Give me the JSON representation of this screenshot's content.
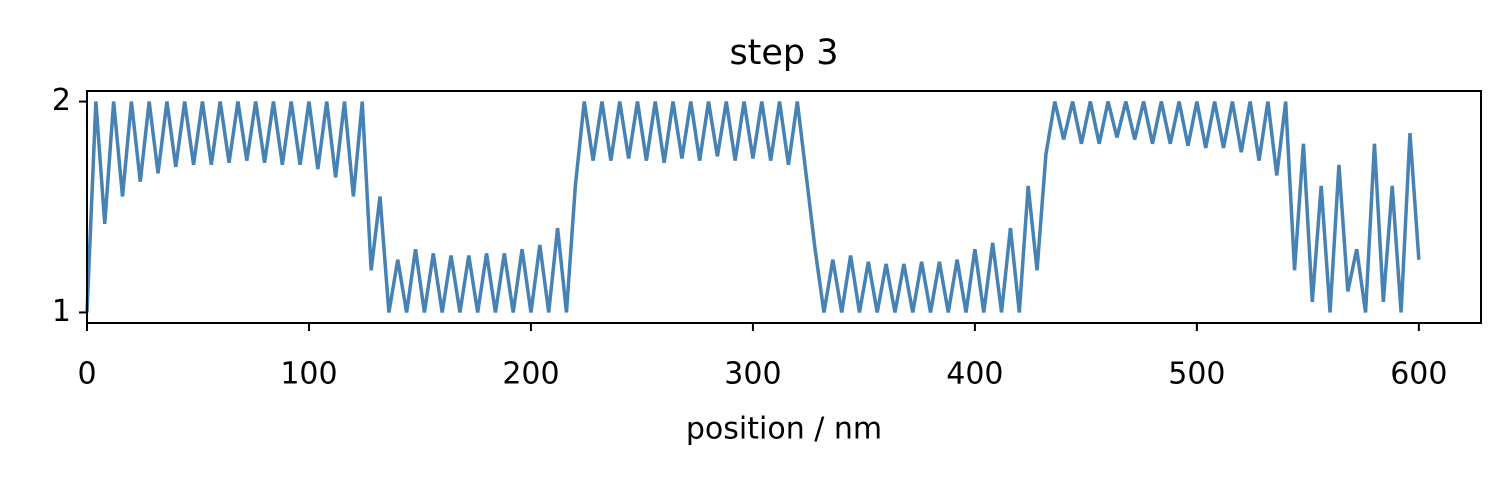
{
  "chart_data": {
    "type": "line",
    "title": "step 3",
    "xlabel": "position / nm",
    "x": [
      0,
      4,
      8,
      12,
      16,
      20,
      24,
      28,
      32,
      36,
      40,
      44,
      48,
      52,
      56,
      60,
      64,
      68,
      72,
      76,
      80,
      84,
      88,
      92,
      96,
      100,
      104,
      108,
      112,
      116,
      120,
      124,
      128,
      132,
      136,
      140,
      144,
      148,
      152,
      156,
      160,
      164,
      168,
      172,
      176,
      180,
      184,
      188,
      192,
      196,
      200,
      204,
      208,
      212,
      216,
      220,
      224,
      228,
      232,
      236,
      240,
      244,
      248,
      252,
      256,
      260,
      264,
      268,
      272,
      276,
      280,
      284,
      288,
      292,
      296,
      300,
      304,
      308,
      312,
      316,
      320,
      324,
      328,
      332,
      336,
      340,
      344,
      348,
      352,
      356,
      360,
      364,
      368,
      372,
      376,
      380,
      384,
      388,
      392,
      396,
      400,
      404,
      408,
      412,
      416,
      420,
      424,
      428,
      432,
      436,
      440,
      444,
      448,
      452,
      456,
      460,
      464,
      468,
      472,
      476,
      480,
      484,
      488,
      492,
      496,
      500,
      504,
      508,
      512,
      516,
      520,
      524,
      528,
      532,
      536,
      540,
      544,
      548,
      552,
      556,
      560,
      564,
      568,
      572,
      576,
      580,
      584,
      588,
      592,
      596,
      600
    ],
    "series": [
      {
        "color": "#4682b4",
        "values": [
          1.0,
          2,
          1.42,
          2,
          1.55,
          2,
          1.62,
          2,
          1.66,
          2,
          1.69,
          2,
          1.7,
          2,
          1.7,
          2,
          1.71,
          2,
          1.72,
          2,
          1.71,
          2,
          1.7,
          2,
          1.7,
          2,
          1.68,
          2,
          1.64,
          2,
          1.55,
          2,
          1.2,
          1.55,
          1,
          1.25,
          1,
          1.3,
          1,
          1.28,
          1,
          1.27,
          1,
          1.27,
          1,
          1.28,
          1,
          1.28,
          1,
          1.3,
          1,
          1.32,
          1,
          1.4,
          1,
          1.6,
          2,
          1.72,
          2,
          1.72,
          2,
          1.73,
          2,
          1.72,
          2,
          1.71,
          2,
          1.73,
          2,
          1.72,
          2,
          1.74,
          2,
          1.72,
          2,
          1.73,
          2,
          1.72,
          2,
          1.7,
          2,
          1.65,
          1.3,
          1,
          1.25,
          1,
          1.27,
          1,
          1.24,
          1,
          1.23,
          1,
          1.23,
          1,
          1.24,
          1,
          1.24,
          1,
          1.25,
          1,
          1.3,
          1,
          1.33,
          1,
          1.4,
          1,
          1.6,
          1.2,
          1.75,
          2,
          1.82,
          2,
          1.8,
          2,
          1.8,
          2,
          1.83,
          2,
          1.82,
          2,
          1.8,
          2,
          1.8,
          2,
          1.79,
          2,
          1.78,
          2,
          1.78,
          2,
          1.76,
          2,
          1.72,
          2,
          1.65,
          2,
          1.2,
          1.8,
          1.05,
          1.6,
          1,
          1.7,
          1.1,
          1.3,
          1,
          1.8,
          1.05,
          1.6,
          1,
          1.85,
          1.25
        ]
      }
    ],
    "xlim": [
      0,
      628
    ],
    "ylim": [
      0.95,
      2.05
    ],
    "xticks": [
      0,
      100,
      200,
      300,
      400,
      500,
      600
    ],
    "yticks": [
      1,
      2
    ]
  }
}
